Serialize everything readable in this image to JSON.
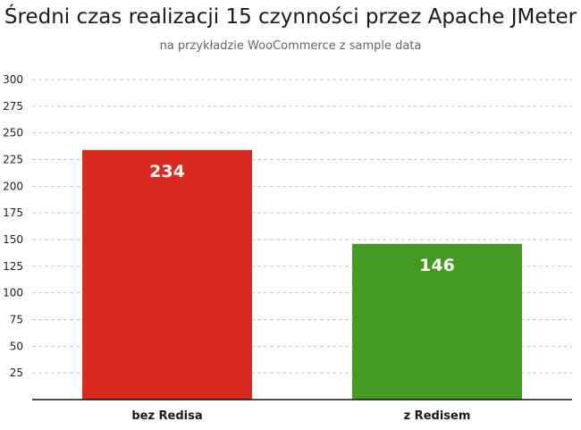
{
  "chart_data": {
    "type": "bar",
    "title": "Średni czas realizacji 15 czynności przez Apache JMeter",
    "subtitle": "na przykładzie WooCommerce z sample data",
    "categories": [
      "bez Redisa",
      "z Redisem"
    ],
    "values": [
      234,
      146
    ],
    "value_labels": [
      "234",
      "146"
    ],
    "ylim": [
      0,
      300
    ],
    "yticks": [
      25,
      50,
      75,
      100,
      125,
      150,
      175,
      200,
      225,
      250,
      275,
      300
    ],
    "ytick_labels": [
      "25",
      "50",
      "75",
      "100",
      "125",
      "150",
      "175",
      "200",
      "225",
      "250",
      "275",
      "300"
    ],
    "xlabel": "",
    "ylabel": "",
    "grid": true,
    "colors": [
      "#d92b21",
      "#449a23"
    ],
    "legend": "none"
  }
}
